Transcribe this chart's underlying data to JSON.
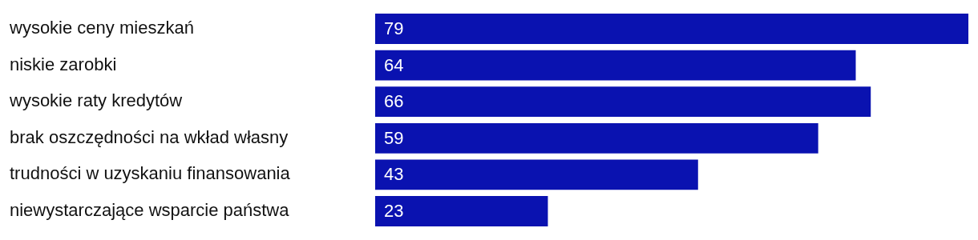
{
  "chart_data": {
    "type": "bar",
    "orientation": "horizontal",
    "categories": [
      "wysokie ceny mieszkań",
      "niskie zarobki",
      "wysokie raty kredytów",
      "brak oszczędności na wkład własny",
      "trudności w uzyskaniu finansowania",
      "niewystarczające wsparcie państwa"
    ],
    "values": [
      79,
      64,
      66,
      59,
      43,
      23
    ],
    "color": "#0a12b0",
    "data_labels": true,
    "legend": false,
    "grid": false
  }
}
